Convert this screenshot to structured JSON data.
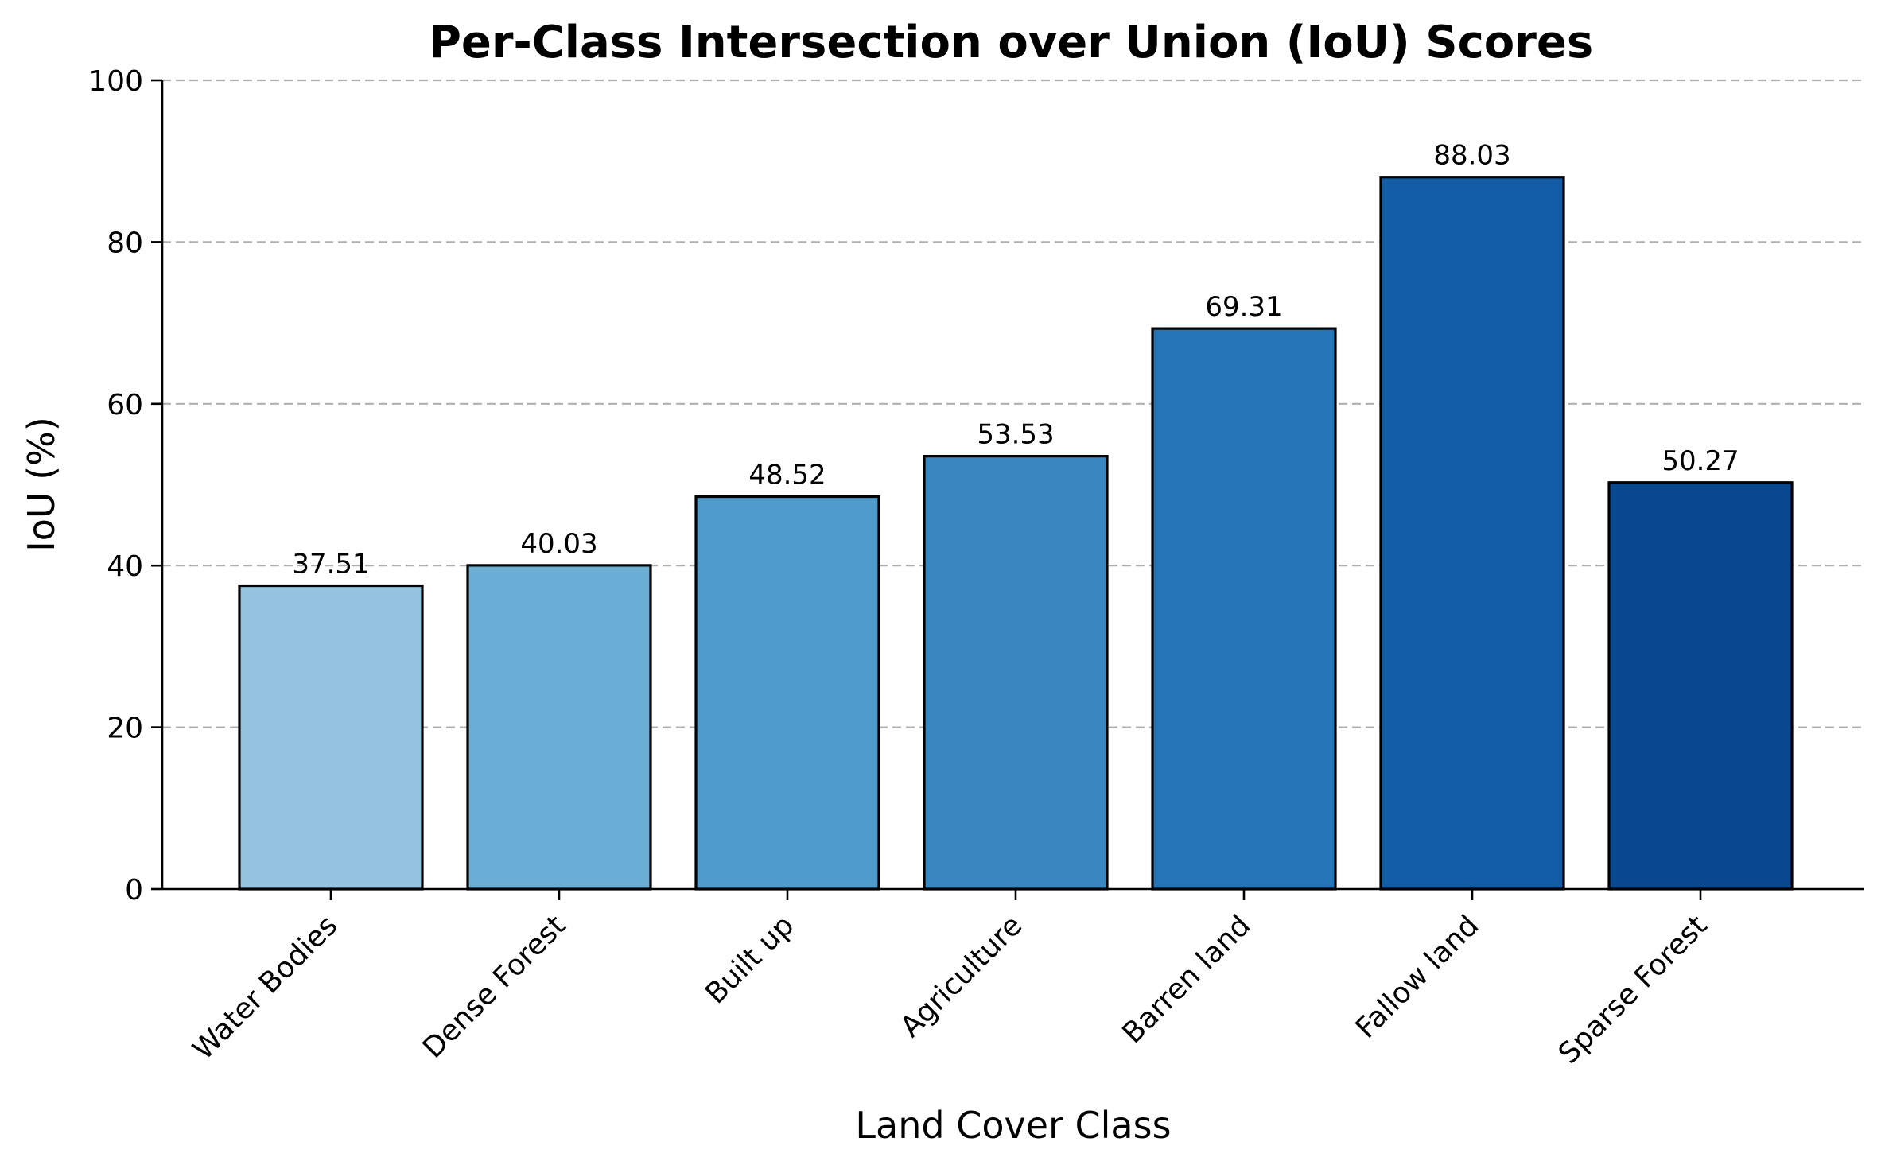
{
  "chart_data": {
    "type": "bar",
    "title": "Per-Class Intersection over Union (IoU) Scores",
    "xlabel": "Land Cover Class",
    "ylabel": "IoU (%)",
    "ylim": [
      0,
      100
    ],
    "yticks": [
      "0",
      "20",
      "40",
      "60",
      "80",
      "100"
    ],
    "grid": "y-dashed",
    "categories": [
      "Water Bodies",
      "Dense Forest",
      "Built up",
      "Agriculture",
      "Barren land",
      "Fallow land",
      "Sparse Forest"
    ],
    "values": [
      37.51,
      40.03,
      48.52,
      53.53,
      69.31,
      88.03,
      50.27
    ],
    "value_labels": [
      "37.51",
      "40.03",
      "48.52",
      "53.53",
      "69.31",
      "88.03",
      "50.27"
    ],
    "colors": [
      "#94c4df",
      "#6aaed6",
      "#4f9bcc",
      "#3887c0",
      "#2474b7",
      "#115ca5",
      "#08488e"
    ]
  }
}
